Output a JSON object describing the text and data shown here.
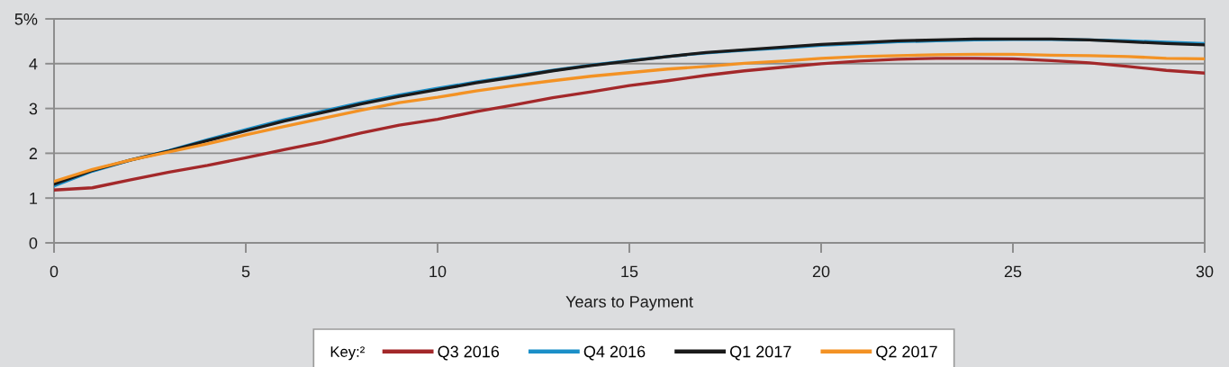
{
  "chart_data": {
    "type": "line",
    "xlabel": "Years to Payment",
    "legend_title": "Key:²",
    "x": [
      0,
      1,
      2,
      3,
      4,
      5,
      6,
      7,
      8,
      9,
      10,
      11,
      12,
      13,
      14,
      15,
      16,
      17,
      18,
      19,
      20,
      21,
      22,
      23,
      24,
      25,
      26,
      27,
      28,
      29,
      30
    ],
    "series": [
      {
        "name": "Q3 2016",
        "color": "#a3282a",
        "values": [
          1.18,
          1.23,
          1.41,
          1.58,
          1.73,
          1.9,
          2.08,
          2.25,
          2.45,
          2.63,
          2.76,
          2.93,
          3.08,
          3.24,
          3.37,
          3.51,
          3.62,
          3.74,
          3.84,
          3.92,
          4.0,
          4.06,
          4.1,
          4.12,
          4.12,
          4.11,
          4.07,
          4.02,
          3.94,
          3.85,
          3.79
        ]
      },
      {
        "name": "Q4 2016",
        "color": "#1b8fc8",
        "values": [
          1.27,
          1.6,
          1.85,
          2.06,
          2.3,
          2.53,
          2.75,
          2.94,
          3.13,
          3.3,
          3.45,
          3.59,
          3.72,
          3.85,
          3.97,
          4.07,
          4.16,
          4.24,
          4.3,
          4.35,
          4.41,
          4.45,
          4.49,
          4.51,
          4.53,
          4.54,
          4.54,
          4.53,
          4.51,
          4.48,
          4.45
        ]
      },
      {
        "name": "Q1 2017",
        "color": "#1a1a1a",
        "values": [
          1.31,
          1.62,
          1.85,
          2.05,
          2.28,
          2.5,
          2.72,
          2.91,
          3.1,
          3.27,
          3.42,
          3.57,
          3.7,
          3.84,
          3.96,
          4.06,
          4.16,
          4.25,
          4.31,
          4.37,
          4.43,
          4.47,
          4.51,
          4.53,
          4.55,
          4.55,
          4.55,
          4.53,
          4.49,
          4.45,
          4.42
        ]
      },
      {
        "name": "Q2 2017",
        "color": "#f39224",
        "values": [
          1.37,
          1.64,
          1.85,
          2.03,
          2.21,
          2.41,
          2.6,
          2.78,
          2.96,
          3.13,
          3.25,
          3.39,
          3.51,
          3.62,
          3.72,
          3.8,
          3.88,
          3.94,
          4.01,
          4.06,
          4.12,
          4.16,
          4.18,
          4.2,
          4.21,
          4.21,
          4.19,
          4.18,
          4.16,
          4.12,
          4.11
        ]
      }
    ],
    "xlim": [
      0,
      30
    ],
    "xticks": [
      0,
      5,
      10,
      15,
      20,
      25,
      30
    ],
    "ylim": [
      0,
      5
    ],
    "yticks": [
      0,
      1,
      2,
      3,
      4,
      {
        "value": 5,
        "label": "5%"
      }
    ],
    "grid": "y",
    "legend": "bottom",
    "marker": "none",
    "line_style": "solid"
  }
}
